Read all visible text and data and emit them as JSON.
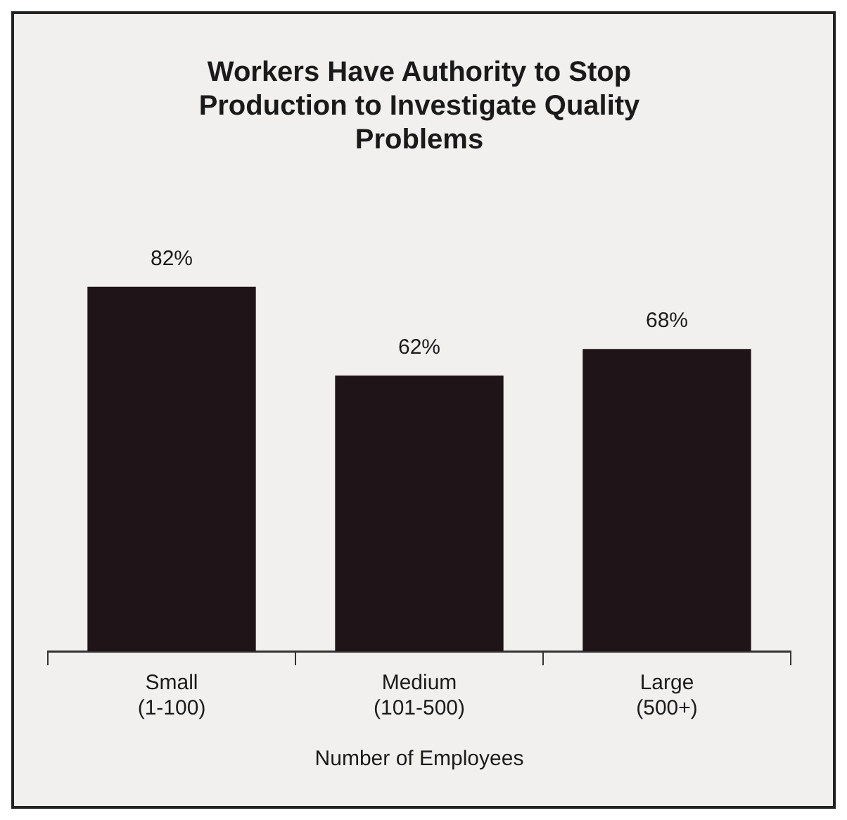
{
  "chart_data": {
    "type": "bar",
    "title": "Workers Have Authority to Stop Production to Investigate Quality Problems",
    "xlabel": "Number of Employees",
    "categories": [
      "Small\n(1-100)",
      "Medium\n(101-500)",
      "Large\n(500+)"
    ],
    "values": [
      82,
      62,
      68
    ],
    "value_labels": [
      "82%",
      "62%",
      "68%"
    ],
    "color": "#1f1519",
    "legend": false,
    "grid": false,
    "tick_labels": "x"
  }
}
